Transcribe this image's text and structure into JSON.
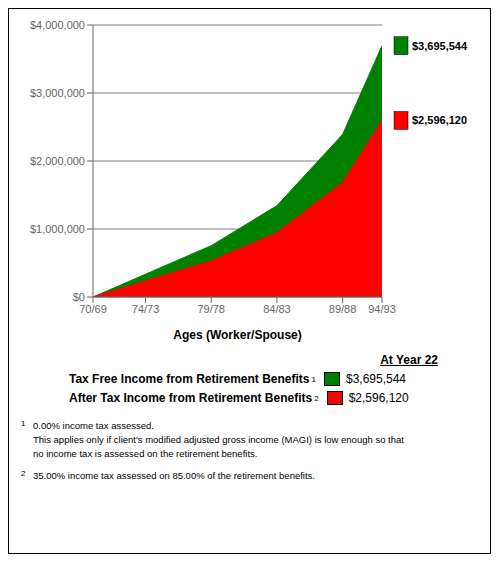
{
  "chart_data": {
    "type": "area",
    "x": [
      0,
      4,
      9,
      14,
      19,
      22
    ],
    "xlim": [
      0,
      22
    ],
    "xticks": [
      {
        "value": 0,
        "label": "70/69"
      },
      {
        "value": 4,
        "label": "74/73"
      },
      {
        "value": 9,
        "label": "79/78"
      },
      {
        "value": 14,
        "label": "84/83"
      },
      {
        "value": 19,
        "label": "89/88"
      },
      {
        "value": 22,
        "label": "94/93"
      }
    ],
    "xlabel": "Ages (Worker/Spouse)",
    "ylim": [
      0,
      4000000
    ],
    "yticks": [
      {
        "value": 0,
        "label": "$0"
      },
      {
        "value": 1000000,
        "label": "$1,000,000"
      },
      {
        "value": 2000000,
        "label": "$2,000,000"
      },
      {
        "value": 3000000,
        "label": "$3,000,000"
      },
      {
        "value": 4000000,
        "label": "$4,000,000"
      }
    ],
    "grid": true,
    "series": [
      {
        "name": "Tax Free Income from Retirement Benefits",
        "superscript": "1",
        "legend_value": "$3,695,544",
        "color": "#008000",
        "values": [
          0,
          335049,
          754861,
          1343082,
          2390935,
          3695544
        ]
      },
      {
        "name": "After Tax Income from Retirement Benefits",
        "superscript": "2",
        "legend_value": "$2,596,120",
        "color": "#FF0000",
        "values": [
          0,
          235835,
          531563,
          945543,
          1683390,
          2596120
        ]
      }
    ],
    "legend_title": "At Year 22",
    "annotations": [
      {
        "text": "$3,695,544",
        "y": 3695544,
        "color": "#008000"
      },
      {
        "text": "$2,596,120",
        "y": 2596120,
        "color": "#FF0000"
      }
    ],
    "footnotes": [
      {
        "mark": "1",
        "lines": [
          "0.00% income tax assessed.",
          "This applies only if client's modified adjusted gross income (MAGI) is low enough so that",
          "no income tax is assessed on the retirement benefits."
        ]
      },
      {
        "mark": "2",
        "lines": [
          "35.00% income tax assessed on 85.00% of the retirement benefits."
        ]
      }
    ]
  }
}
